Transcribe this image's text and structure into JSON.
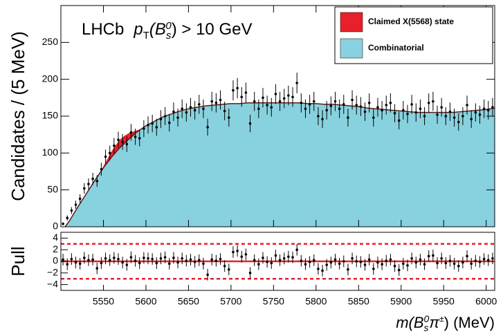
{
  "chart_data": {
    "type": "errorbar",
    "y_label": "Candidates / (5 MeV)",
    "x_label_parts": [
      "m",
      "(B",
      "s",
      "0",
      "π",
      "±",
      ") (MeV)"
    ],
    "annotation_parts": [
      "LHCb",
      "p",
      "T",
      "(B",
      "s",
      "0",
      ") > 10 GeV"
    ],
    "xlim": [
      5500,
      6010
    ],
    "xticks": [
      5550,
      5600,
      5650,
      5700,
      5750,
      5800,
      5850,
      5900,
      5950,
      6000
    ],
    "ylim": [
      0,
      300
    ],
    "yticks": [
      0,
      50,
      100,
      150,
      200,
      250
    ],
    "legend_position": "upper right",
    "x": [
      5502.5,
      5507.5,
      5512.5,
      5517.5,
      5522.5,
      5527.5,
      5532.5,
      5537.5,
      5542.5,
      5547.5,
      5552.5,
      5557.5,
      5562.5,
      5567.5,
      5572.5,
      5577.5,
      5582.5,
      5587.5,
      5592.5,
      5597.5,
      5602.5,
      5607.5,
      5612.5,
      5617.5,
      5622.5,
      5627.5,
      5632.5,
      5637.5,
      5642.5,
      5647.5,
      5652.5,
      5657.5,
      5662.5,
      5667.5,
      5672.5,
      5677.5,
      5682.5,
      5687.5,
      5692.5,
      5697.5,
      5702.5,
      5707.5,
      5712.5,
      5717.5,
      5722.5,
      5727.5,
      5732.5,
      5737.5,
      5742.5,
      5747.5,
      5752.5,
      5757.5,
      5762.5,
      5767.5,
      5772.5,
      5777.5,
      5782.5,
      5787.5,
      5792.5,
      5797.5,
      5802.5,
      5807.5,
      5812.5,
      5817.5,
      5822.5,
      5827.5,
      5832.5,
      5837.5,
      5842.5,
      5847.5,
      5852.5,
      5857.5,
      5862.5,
      5867.5,
      5872.5,
      5877.5,
      5882.5,
      5887.5,
      5892.5,
      5897.5,
      5902.5,
      5907.5,
      5912.5,
      5917.5,
      5922.5,
      5927.5,
      5932.5,
      5937.5,
      5942.5,
      5947.5,
      5952.5,
      5957.5,
      5962.5,
      5967.5,
      5972.5,
      5977.5,
      5982.5,
      5987.5,
      5992.5,
      5997.5,
      6002.5,
      6007.5
    ],
    "values": [
      4,
      12,
      22,
      30,
      38,
      52,
      58,
      65,
      62,
      78,
      95,
      100,
      110,
      118,
      115,
      112,
      128,
      122,
      120,
      133,
      138,
      140,
      135,
      146,
      150,
      141,
      156,
      148,
      160,
      155,
      162,
      158,
      166,
      160,
      135,
      170,
      168,
      172,
      157,
      148,
      185,
      188,
      176,
      182,
      140,
      170,
      160,
      175,
      165,
      162,
      180,
      170,
      174,
      178,
      176,
      195,
      168,
      160,
      166,
      170,
      150,
      146,
      158,
      164,
      170,
      160,
      166,
      148,
      172,
      165,
      163,
      156,
      168,
      148,
      162,
      158,
      165,
      168,
      154,
      144,
      158,
      153,
      166,
      155,
      160,
      150,
      168,
      170,
      152,
      162,
      150,
      156,
      148,
      142,
      150,
      165,
      146,
      155,
      152,
      160,
      158,
      162
    ],
    "errors": [
      2,
      3.5,
      4.7,
      5.5,
      6.2,
      7.2,
      7.6,
      8.1,
      7.9,
      8.8,
      9.7,
      10,
      10.5,
      10.9,
      10.7,
      10.6,
      11.3,
      11,
      11,
      11.5,
      11.7,
      11.8,
      11.6,
      12.1,
      12.2,
      11.9,
      12.5,
      12.2,
      12.6,
      12.4,
      12.7,
      12.6,
      12.9,
      12.6,
      11.6,
      13,
      13,
      13.1,
      12.5,
      12.2,
      13.6,
      13.7,
      13.3,
      13.5,
      11.8,
      13,
      12.6,
      13.2,
      12.8,
      12.7,
      13.4,
      13,
      13.2,
      13.3,
      13.3,
      14,
      13,
      12.6,
      12.9,
      13,
      12.2,
      12.1,
      12.6,
      12.8,
      13,
      12.6,
      12.9,
      12.2,
      13.1,
      12.8,
      12.8,
      12.5,
      13,
      12.2,
      12.7,
      12.6,
      12.8,
      13,
      12.4,
      12,
      12.6,
      12.4,
      12.9,
      12.4,
      12.6,
      12.2,
      13,
      13,
      12.3,
      12.7,
      12.2,
      12.5,
      12.2,
      11.9,
      12.2,
      12.8,
      12.1,
      12.4,
      12.3,
      12.6,
      12.6,
      12.7
    ],
    "series": [
      {
        "name": "Combinatorial",
        "color": "#88d2df",
        "x": [
          5505,
          5510,
          5520,
          5530,
          5540,
          5550,
          5560,
          5570,
          5580,
          5590,
          5600,
          5610,
          5620,
          5630,
          5640,
          5650,
          5660,
          5670,
          5680,
          5690,
          5700,
          5710,
          5720,
          5730,
          5740,
          5750,
          5760,
          5770,
          5780,
          5790,
          5800,
          5810,
          5820,
          5830,
          5840,
          5850,
          5860,
          5870,
          5880,
          5890,
          5900,
          5910,
          5920,
          5930,
          5940,
          5950,
          5960,
          5970,
          5980,
          5990,
          6000,
          6010
        ],
        "values": [
          0,
          8,
          27,
          45,
          63,
          80,
          95,
          108,
          119,
          129,
          137,
          143,
          149,
          153,
          157,
          160,
          162,
          164,
          165,
          166,
          167,
          167,
          168,
          168,
          168,
          168,
          168,
          168,
          168,
          167,
          167,
          166,
          166,
          165,
          164,
          163,
          161,
          160,
          159,
          158,
          157,
          156,
          155,
          155,
          155,
          155,
          155,
          156,
          157,
          158,
          159,
          161
        ]
      },
      {
        "name": "Claimed X(5568) state",
        "color": "#e8202a",
        "x": [
          5545,
          5550,
          5555,
          5560,
          5565,
          5570,
          5575,
          5580,
          5585,
          5590,
          5595
        ],
        "values": [
          0,
          2,
          5,
          8,
          10,
          11,
          10,
          8,
          5,
          2,
          0
        ]
      }
    ],
    "pull": {
      "y_label": "Pull",
      "ylim": [
        -5,
        5
      ],
      "yticks": [
        {
          "value": -4,
          "label": "−4"
        },
        {
          "value": -2,
          "label": "−2"
        },
        0,
        2,
        4
      ],
      "error": 1,
      "lines": [
        {
          "value": 0,
          "style": "solid"
        },
        {
          "value": 3,
          "style": "dashed"
        },
        {
          "value": -3,
          "style": "dashed"
        }
      ],
      "line_color": "#e8202a",
      "values": [
        0.3,
        -0.5,
        0.4,
        -0.2,
        -0.4,
        0.6,
        0.2,
        0.3,
        -1.2,
        -0.3,
        0.5,
        0.2,
        0.6,
        0.4,
        -0.2,
        -0.6,
        0.7,
        0.1,
        -0.3,
        0.6,
        0.5,
        0.4,
        -0.3,
        0.5,
        0.7,
        -0.4,
        0.6,
        -0.2,
        0.5,
        0.1,
        0.3,
        -0.1,
        0.2,
        -0.4,
        -2.3,
        0.3,
        0.1,
        0.4,
        -0.8,
        -1.4,
        1.6,
        1.8,
        0.8,
        1.2,
        -2.0,
        0.2,
        -0.5,
        0.6,
        -0.1,
        -0.3,
        1.0,
        0.2,
        0.5,
        0.8,
        0.7,
        2.0,
        0.1,
        -0.5,
        -0.1,
        0.2,
        -1.3,
        -1.6,
        -0.6,
        -0.2,
        0.3,
        -0.4,
        0,
        -1.4,
        0.5,
        0,
        -0.1,
        -0.6,
        0.3,
        -1.3,
        -0.2,
        -0.5,
        0.1,
        0.3,
        -0.8,
        -1.5,
        -0.4,
        -0.7,
        0.5,
        -0.2,
        0.3,
        -0.5,
        0.9,
        1.0,
        -0.3,
        0.5,
        -0.3,
        0.1,
        -0.4,
        -0.8,
        -0.2,
        0.9,
        -0.4,
        0.1,
        -0.1,
        0.4,
        0.2,
        0.5
      ]
    }
  }
}
